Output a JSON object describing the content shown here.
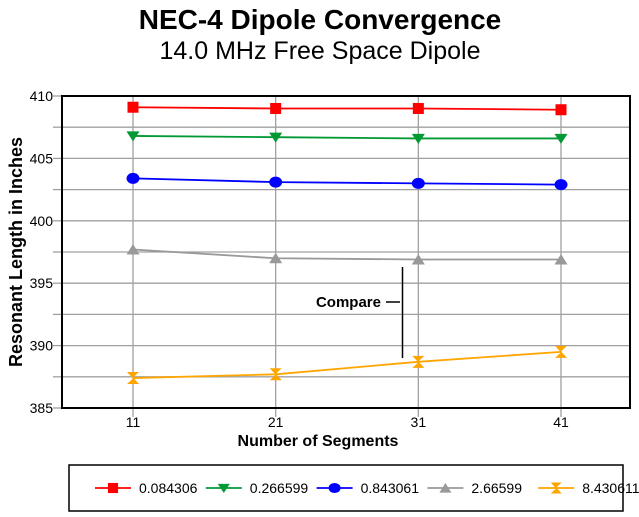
{
  "title": "NEC-4 Dipole Convergence",
  "subtitle": "14.0 MHz Free Space Dipole",
  "chart_data": {
    "type": "line",
    "x": [
      11,
      21,
      31,
      41
    ],
    "x_tick_labels": [
      "11",
      "21",
      "31",
      "41"
    ],
    "y_tick_labels": [
      "385",
      "390",
      "395",
      "400",
      "405",
      "410"
    ],
    "xlabel": "Number of Segments",
    "ylabel": "Resonant Length in Inches",
    "ylim": [
      385,
      410
    ],
    "y_major_step": 5,
    "y_grid_step": 2.5,
    "grid": true,
    "legend_position": "bottom",
    "series": [
      {
        "name": "0.084306",
        "marker": "square",
        "color": "#ff0000",
        "values": [
          409.1,
          409.0,
          409.0,
          408.9
        ]
      },
      {
        "name": "0.266599",
        "marker": "triangle-down",
        "color": "#009933",
        "values": [
          406.8,
          406.7,
          406.6,
          406.6
        ]
      },
      {
        "name": "0.843061",
        "marker": "circle",
        "color": "#0000ff",
        "values": [
          403.4,
          403.1,
          403.0,
          402.9
        ]
      },
      {
        "name": "2.66599",
        "marker": "triangle-up",
        "color": "#999999",
        "values": [
          397.7,
          397.0,
          396.9,
          396.9
        ]
      },
      {
        "name": "8.430611",
        "marker": "hourglass",
        "color": "#ffa500",
        "values": [
          387.4,
          387.7,
          388.7,
          389.5
        ]
      }
    ],
    "annotation": {
      "label": "Compare",
      "at_x": 31,
      "between_series": [
        "2.66599",
        "8.430611"
      ]
    }
  },
  "colors": {
    "background": "#ffffff",
    "axis": "#000000",
    "grid": "#a0a0a0",
    "annotation": "#000000",
    "text": "#000000"
  }
}
